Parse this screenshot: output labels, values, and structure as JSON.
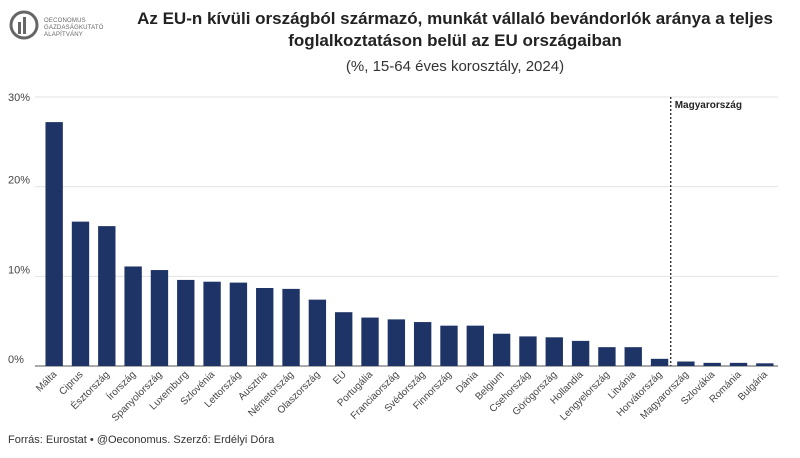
{
  "logo": {
    "lines": [
      "OECONOMUS",
      "GAZDASÁGKUTATÓ",
      "ALAPÍTVÁNY"
    ],
    "icon": "oeconomus-logo-icon"
  },
  "header": {
    "title_line1": "Az EU-n kívüli országból származó, munkát vállaló bevándorlók aránya a teljes",
    "title_line2": "foglalkoztatáson belül az EU országaiban",
    "subtitle": "(%, 15-64 éves korosztály, 2024)"
  },
  "footer": {
    "source": "Forrás: Eurostat • @Oeconomus. Szerző: Erdélyi Dóra"
  },
  "colors": {
    "bar": "#1f3466",
    "grid": "#e3e3e3",
    "axis": "#555555"
  },
  "chart_data": {
    "type": "bar",
    "title": "Az EU-n kívüli országból származó, munkát vállaló bevándorlók aránya a teljes foglalkoztatáson belül az EU országaiban",
    "subtitle": "(%, 15-64 éves korosztály, 2024)",
    "xlabel": "",
    "ylabel": "",
    "ylim": [
      0,
      30
    ],
    "yticks": [
      0,
      10,
      20,
      30
    ],
    "ytick_labels": [
      "0%",
      "10%",
      "20%",
      "30%"
    ],
    "grid": true,
    "categories": [
      "Málta",
      "Ciprus",
      "Észtország",
      "Írország",
      "Spanyolország",
      "Luxemburg",
      "Szlovénia",
      "Lettország",
      "Ausztria",
      "Németország",
      "Olaszország",
      "EU",
      "Portugália",
      "Franciaország",
      "Svédország",
      "Finnország",
      "Dánia",
      "Belgium",
      "Csehország",
      "Görögország",
      "Hollandia",
      "Lengyelország",
      "Litvánia",
      "Horvátország",
      "Magyarország",
      "Szlovákia",
      "Románia",
      "Bulgária"
    ],
    "values": [
      27.2,
      16.1,
      15.6,
      11.1,
      10.7,
      9.6,
      9.4,
      9.3,
      8.7,
      8.6,
      7.4,
      6.0,
      5.4,
      5.2,
      4.9,
      4.5,
      4.5,
      3.6,
      3.3,
      3.2,
      2.8,
      2.1,
      2.1,
      0.8,
      0.5,
      0.35,
      0.35,
      0.3
    ],
    "annotation": {
      "label": "Magyarország",
      "category": "Magyarország",
      "style": "dotted vertical line"
    }
  }
}
